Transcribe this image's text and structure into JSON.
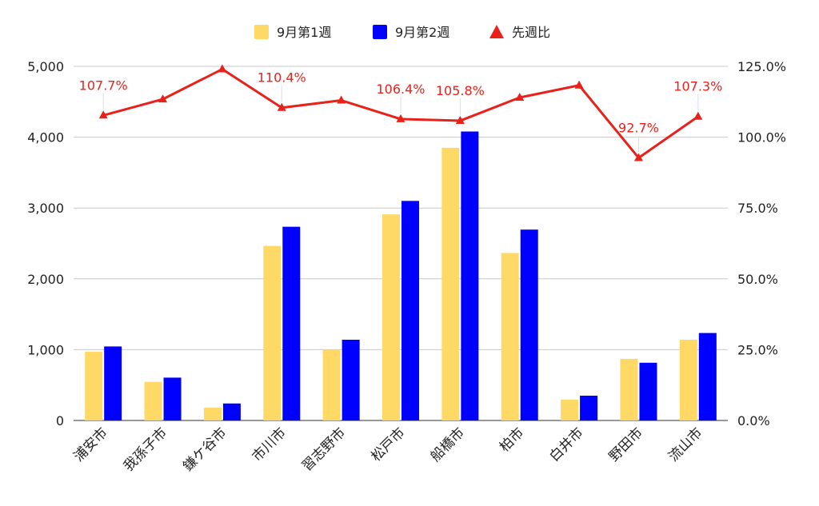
{
  "chart_data": {
    "type": "bar",
    "categories": [
      "浦安市",
      "我孫子市",
      "鎌ケ谷市",
      "市川市",
      "習志野市",
      "松戸市",
      "船橋市",
      "柏市",
      "白井市",
      "野田市",
      "流山市"
    ],
    "series": [
      {
        "name": "9月第1週",
        "kind": "bar",
        "axis": "left",
        "color": "#ffd966",
        "values": [
          970,
          545,
          180,
          2465,
          1000,
          2910,
          3850,
          2365,
          295,
          870,
          1140
        ]
      },
      {
        "name": "9月第2週",
        "kind": "bar",
        "axis": "left",
        "color": "#0000ff",
        "values": [
          1045,
          605,
          240,
          2735,
          1140,
          3100,
          4080,
          2695,
          350,
          815,
          1235
        ]
      },
      {
        "name": "先週比",
        "kind": "line",
        "axis": "right",
        "color": "#e8221b",
        "marker": "triangle",
        "values": [
          107.7,
          113.4,
          124.0,
          110.4,
          113.0,
          106.4,
          105.8,
          114.0,
          118.3,
          92.7,
          107.3
        ]
      }
    ],
    "data_labels": [
      {
        "index": 0,
        "text": "107.7%"
      },
      {
        "index": 3,
        "text": "110.4%"
      },
      {
        "index": 5,
        "text": "106.4%"
      },
      {
        "index": 6,
        "text": "105.8%"
      },
      {
        "index": 9,
        "text": "92.7%"
      },
      {
        "index": 10,
        "text": "107.3%"
      }
    ],
    "y_left": {
      "ylim": [
        0,
        5000
      ],
      "ticks": [
        "0",
        "1,000",
        "2,000",
        "3,000",
        "4,000",
        "5,000"
      ]
    },
    "y_right": {
      "ylim": [
        0,
        125
      ],
      "ticks": [
        "0.0%",
        "25.0%",
        "50.0%",
        "75.0%",
        "100.0%",
        "125.0%"
      ]
    },
    "legend": {
      "position": "top-center"
    },
    "grid": true,
    "title": "",
    "xlabel": "",
    "ylabel": ""
  }
}
